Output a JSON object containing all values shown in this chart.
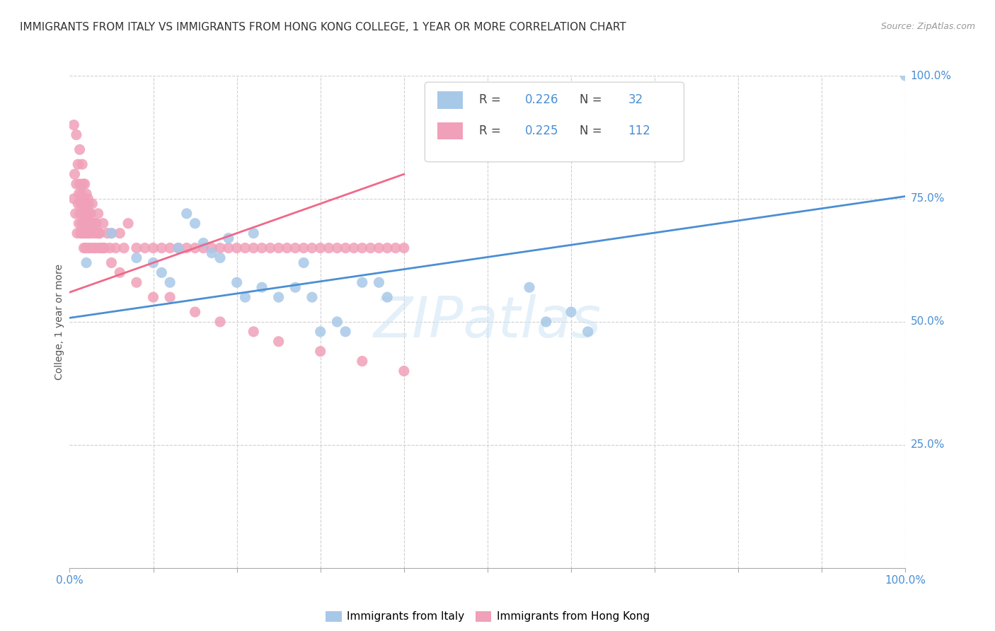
{
  "title": "IMMIGRANTS FROM ITALY VS IMMIGRANTS FROM HONG KONG COLLEGE, 1 YEAR OR MORE CORRELATION CHART",
  "source": "Source: ZipAtlas.com",
  "ylabel": "College, 1 year or more",
  "xlim": [
    0,
    1.0
  ],
  "ylim": [
    0,
    1.0
  ],
  "ytick_labels": [
    "25.0%",
    "50.0%",
    "75.0%",
    "100.0%"
  ],
  "ytick_positions": [
    0.25,
    0.5,
    0.75,
    1.0
  ],
  "watermark": "ZIPatlas",
  "legend_R_italy": "0.226",
  "legend_N_italy": "32",
  "legend_R_hk": "0.225",
  "legend_N_hk": "112",
  "italy_color": "#a8c8e8",
  "hk_color": "#f0a0b8",
  "italy_line_color": "#4a8fd4",
  "hk_line_color": "#f06888",
  "background_color": "#ffffff",
  "grid_color": "#d0d0d0",
  "italy_scatter_x": [
    0.02,
    0.05,
    0.08,
    0.1,
    0.11,
    0.12,
    0.13,
    0.14,
    0.15,
    0.16,
    0.17,
    0.18,
    0.19,
    0.2,
    0.21,
    0.22,
    0.23,
    0.25,
    0.27,
    0.28,
    0.29,
    0.3,
    0.32,
    0.33,
    0.35,
    0.37,
    0.38,
    0.55,
    0.57,
    0.6,
    0.62,
    1.0
  ],
  "italy_scatter_y": [
    0.62,
    0.68,
    0.63,
    0.62,
    0.6,
    0.58,
    0.65,
    0.72,
    0.7,
    0.66,
    0.64,
    0.63,
    0.67,
    0.58,
    0.55,
    0.68,
    0.57,
    0.55,
    0.57,
    0.62,
    0.55,
    0.48,
    0.5,
    0.48,
    0.58,
    0.58,
    0.55,
    0.57,
    0.5,
    0.52,
    0.48,
    1.0
  ],
  "hk_scatter_x": [
    0.005,
    0.006,
    0.007,
    0.008,
    0.009,
    0.01,
    0.01,
    0.011,
    0.011,
    0.012,
    0.012,
    0.013,
    0.013,
    0.014,
    0.014,
    0.015,
    0.015,
    0.016,
    0.016,
    0.017,
    0.017,
    0.018,
    0.018,
    0.019,
    0.019,
    0.02,
    0.02,
    0.021,
    0.021,
    0.022,
    0.022,
    0.023,
    0.023,
    0.024,
    0.025,
    0.025,
    0.026,
    0.027,
    0.028,
    0.029,
    0.03,
    0.031,
    0.032,
    0.033,
    0.034,
    0.035,
    0.036,
    0.038,
    0.04,
    0.042,
    0.045,
    0.048,
    0.05,
    0.055,
    0.06,
    0.065,
    0.07,
    0.08,
    0.09,
    0.1,
    0.11,
    0.12,
    0.13,
    0.14,
    0.15,
    0.16,
    0.17,
    0.18,
    0.19,
    0.2,
    0.21,
    0.22,
    0.23,
    0.24,
    0.25,
    0.26,
    0.27,
    0.28,
    0.29,
    0.3,
    0.31,
    0.32,
    0.33,
    0.34,
    0.35,
    0.36,
    0.37,
    0.38,
    0.39,
    0.4,
    0.005,
    0.008,
    0.012,
    0.015,
    0.018,
    0.022,
    0.025,
    0.03,
    0.035,
    0.04,
    0.05,
    0.06,
    0.08,
    0.1,
    0.12,
    0.15,
    0.18,
    0.22,
    0.25,
    0.3,
    0.35,
    0.4
  ],
  "hk_scatter_y": [
    0.75,
    0.8,
    0.72,
    0.78,
    0.68,
    0.74,
    0.82,
    0.7,
    0.76,
    0.72,
    0.78,
    0.68,
    0.74,
    0.7,
    0.76,
    0.68,
    0.74,
    0.72,
    0.78,
    0.65,
    0.7,
    0.68,
    0.74,
    0.72,
    0.65,
    0.7,
    0.76,
    0.68,
    0.74,
    0.65,
    0.72,
    0.68,
    0.74,
    0.7,
    0.65,
    0.72,
    0.68,
    0.74,
    0.7,
    0.65,
    0.68,
    0.65,
    0.7,
    0.68,
    0.72,
    0.65,
    0.68,
    0.65,
    0.7,
    0.65,
    0.68,
    0.65,
    0.68,
    0.65,
    0.68,
    0.65,
    0.7,
    0.65,
    0.65,
    0.65,
    0.65,
    0.65,
    0.65,
    0.65,
    0.65,
    0.65,
    0.65,
    0.65,
    0.65,
    0.65,
    0.65,
    0.65,
    0.65,
    0.65,
    0.65,
    0.65,
    0.65,
    0.65,
    0.65,
    0.65,
    0.65,
    0.65,
    0.65,
    0.65,
    0.65,
    0.65,
    0.65,
    0.65,
    0.65,
    0.65,
    0.9,
    0.88,
    0.85,
    0.82,
    0.78,
    0.75,
    0.72,
    0.7,
    0.68,
    0.65,
    0.62,
    0.6,
    0.58,
    0.55,
    0.55,
    0.52,
    0.5,
    0.48,
    0.46,
    0.44,
    0.42,
    0.4
  ],
  "italy_line_x": [
    0.0,
    1.0
  ],
  "italy_line_y": [
    0.508,
    0.755
  ],
  "hk_line_x": [
    0.0,
    0.4
  ],
  "hk_line_y": [
    0.56,
    0.8
  ]
}
